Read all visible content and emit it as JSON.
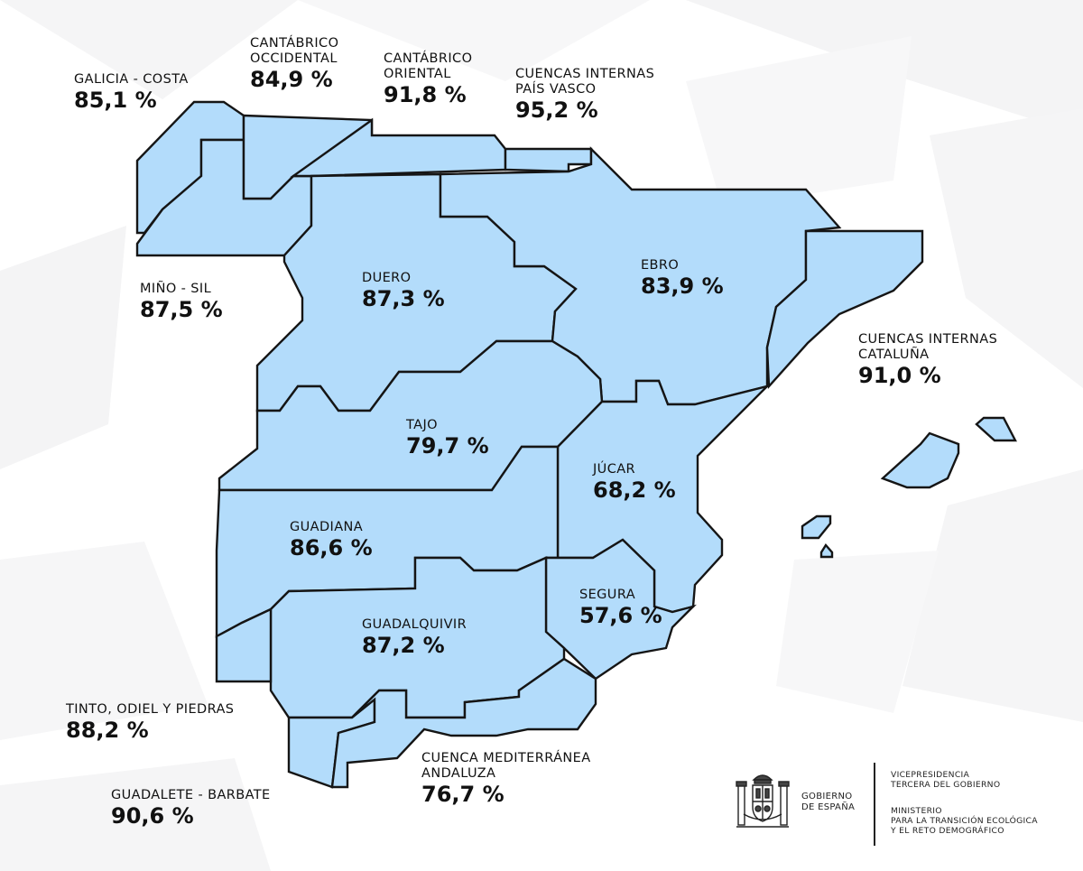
{
  "map": {
    "fill_color": "#b3dcfb",
    "border_color": "#151515",
    "basins": [
      {
        "id": "galicia-costa",
        "name": "GALICIA - COSTA",
        "value": "85,1 %"
      },
      {
        "id": "cantabrico-occidental",
        "name": "CANTÁBRICO\nOCCIDENTAL",
        "value": "84,9 %"
      },
      {
        "id": "cantabrico-oriental",
        "name": "CANTÁBRICO\nORIENTAL",
        "value": "91,8 %"
      },
      {
        "id": "cuencas-internas-pais-vasco",
        "name": "CUENCAS INTERNAS\nPAÍS VASCO",
        "value": "95,2 %"
      },
      {
        "id": "mino-sil",
        "name": "MIÑO - SIL",
        "value": "87,5 %"
      },
      {
        "id": "duero",
        "name": "DUERO",
        "value": "87,3 %"
      },
      {
        "id": "ebro",
        "name": "EBRO",
        "value": "83,9 %"
      },
      {
        "id": "cuencas-internas-cataluna",
        "name": "CUENCAS INTERNAS\nCATALUÑA",
        "value": "91,0 %"
      },
      {
        "id": "tajo",
        "name": "TAJO",
        "value": "79,7 %"
      },
      {
        "id": "jucar",
        "name": "JÚCAR",
        "value": "68,2 %"
      },
      {
        "id": "guadiana",
        "name": "GUADIANA",
        "value": "86,6 %"
      },
      {
        "id": "segura",
        "name": "SEGURA",
        "value": "57,6 %"
      },
      {
        "id": "guadalquivir",
        "name": "GUADALQUIVIR",
        "value": "87,2 %"
      },
      {
        "id": "tinto-odiel-piedras",
        "name": "TINTO, ODIEL Y PIEDRAS",
        "value": "88,2 %"
      },
      {
        "id": "guadalete-barbate",
        "name": "GUADALETE - BARBATE",
        "value": "90,6 %"
      },
      {
        "id": "cuenca-mediterranea-andaluza",
        "name": "CUENCA MEDITERRÁNEA\nANDALUZA",
        "value": "76,7 %"
      }
    ]
  },
  "footer": {
    "gobierno": "GOBIERNO\nDE ESPAÑA",
    "vicepresidencia": "VICEPRESIDENCIA\nTERCERA DEL GOBIERNO",
    "ministerio": "MINISTERIO\nPARA LA TRANSICIÓN ECOLÓGICA\nY EL RETO DEMOGRÁFICO"
  }
}
